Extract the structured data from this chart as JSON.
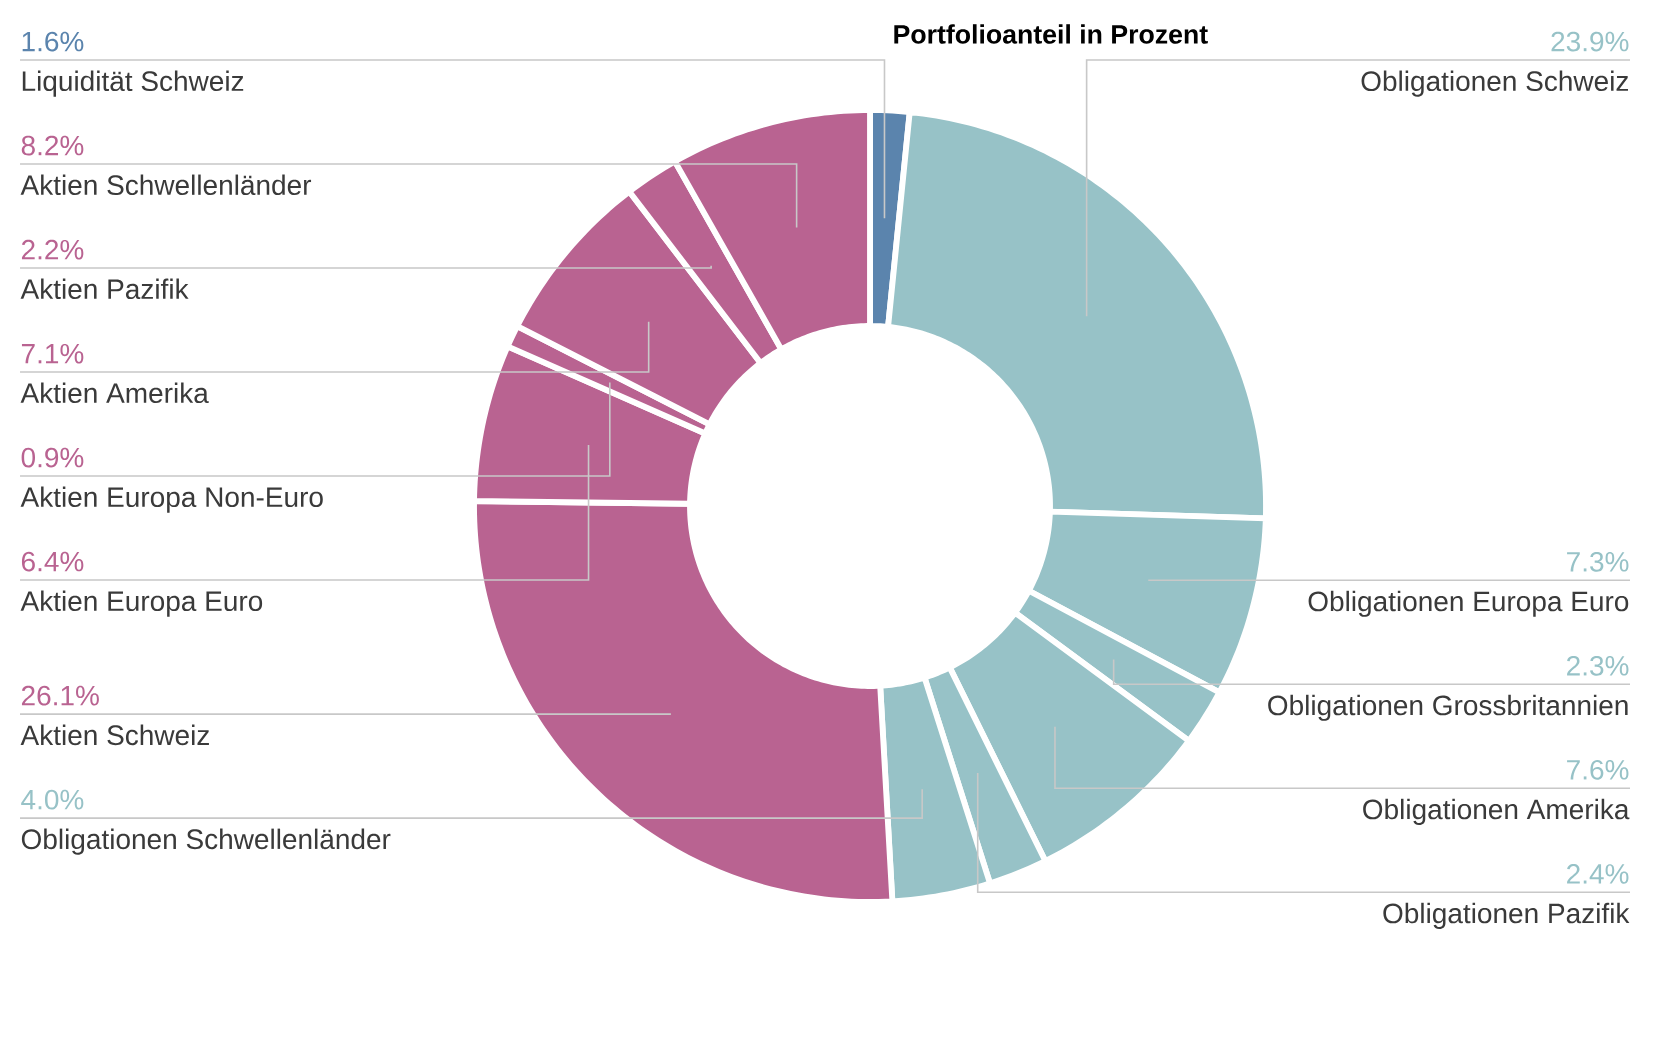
{
  "chart_data": {
    "type": "donut",
    "title": "Portfolioanteil in Prozent",
    "categories": [
      "Liquidität Schweiz",
      "Obligationen Schweiz",
      "Obligationen Europa Euro",
      "Obligationen Grossbritannien",
      "Obligationen Amerika",
      "Obligationen Pazifik",
      "Obligationen Schwellenländer",
      "Aktien Schweiz",
      "Aktien Europa Euro",
      "Aktien Europa Non-Euro",
      "Aktien Amerika",
      "Aktien Pazifik",
      "Aktien Schwellenländer"
    ],
    "values": [
      1.6,
      23.9,
      7.3,
      2.3,
      7.6,
      2.4,
      4.0,
      26.1,
      6.4,
      0.9,
      7.1,
      2.2,
      8.2
    ],
    "value_labels": [
      "1.6%",
      "23.9%",
      "7.3%",
      "2.3%",
      "7.6%",
      "2.4%",
      "4.0%",
      "26.1%",
      "6.4%",
      "0.9%",
      "7.1%",
      "2.2%",
      "8.2%"
    ],
    "colors": [
      "#5b84ad",
      "#97c2c7",
      "#97c2c7",
      "#97c2c7",
      "#97c2c7",
      "#97c2c7",
      "#97c2c7",
      "#b96391",
      "#b96391",
      "#b96391",
      "#b96391",
      "#b96391",
      "#b96391"
    ]
  }
}
